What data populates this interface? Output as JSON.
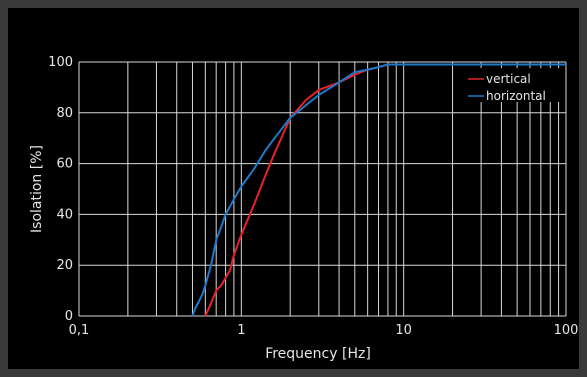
{
  "chart_data": {
    "type": "line",
    "title": "",
    "xlabel": "Frequency [Hz]",
    "ylabel": "Isolation [%]",
    "xscale": "log",
    "xlim": [
      0.1,
      100
    ],
    "ylim": [
      0,
      100
    ],
    "grid": true,
    "legend_position": "top-right",
    "x_ticks": [
      {
        "value": 0.1,
        "label": "0,1"
      },
      {
        "value": 1,
        "label": "1"
      },
      {
        "value": 10,
        "label": "10"
      },
      {
        "value": 100,
        "label": "100"
      }
    ],
    "y_ticks": [
      {
        "value": 0,
        "label": "0"
      },
      {
        "value": 20,
        "label": "20"
      },
      {
        "value": 40,
        "label": "40"
      },
      {
        "value": 60,
        "label": "60"
      },
      {
        "value": 80,
        "label": "80"
      },
      {
        "value": 100,
        "label": "100"
      }
    ],
    "series": [
      {
        "name": "vertical",
        "color": "#e8212b",
        "x": [
          0.6,
          0.65,
          0.7,
          0.75,
          0.8,
          0.85,
          0.9,
          1.0,
          1.2,
          1.4,
          1.6,
          2.0,
          2.5,
          3.0,
          4.0,
          5.0,
          6.0,
          7.0,
          8.0,
          10,
          20,
          50,
          100
        ],
        "y": [
          0,
          5,
          10,
          12,
          15,
          18,
          24,
          32,
          44,
          55,
          64,
          78,
          85,
          89,
          92,
          95,
          97,
          98,
          99,
          99,
          99,
          99,
          99
        ]
      },
      {
        "name": "horizontal",
        "color": "#1f78c8",
        "x": [
          0.5,
          0.52,
          0.55,
          0.58,
          0.6,
          0.65,
          0.7,
          0.75,
          0.8,
          0.9,
          1.0,
          1.2,
          1.4,
          1.6,
          2.0,
          2.5,
          3.0,
          4.0,
          5.0,
          6.0,
          7.0,
          8.0,
          10,
          20,
          50,
          100
        ],
        "y": [
          0,
          3,
          6,
          9,
          12,
          20,
          30,
          35,
          40,
          46,
          51,
          58,
          65,
          70,
          78,
          83,
          87,
          92,
          96,
          97,
          98,
          99,
          99,
          99,
          99,
          99
        ]
      }
    ]
  }
}
